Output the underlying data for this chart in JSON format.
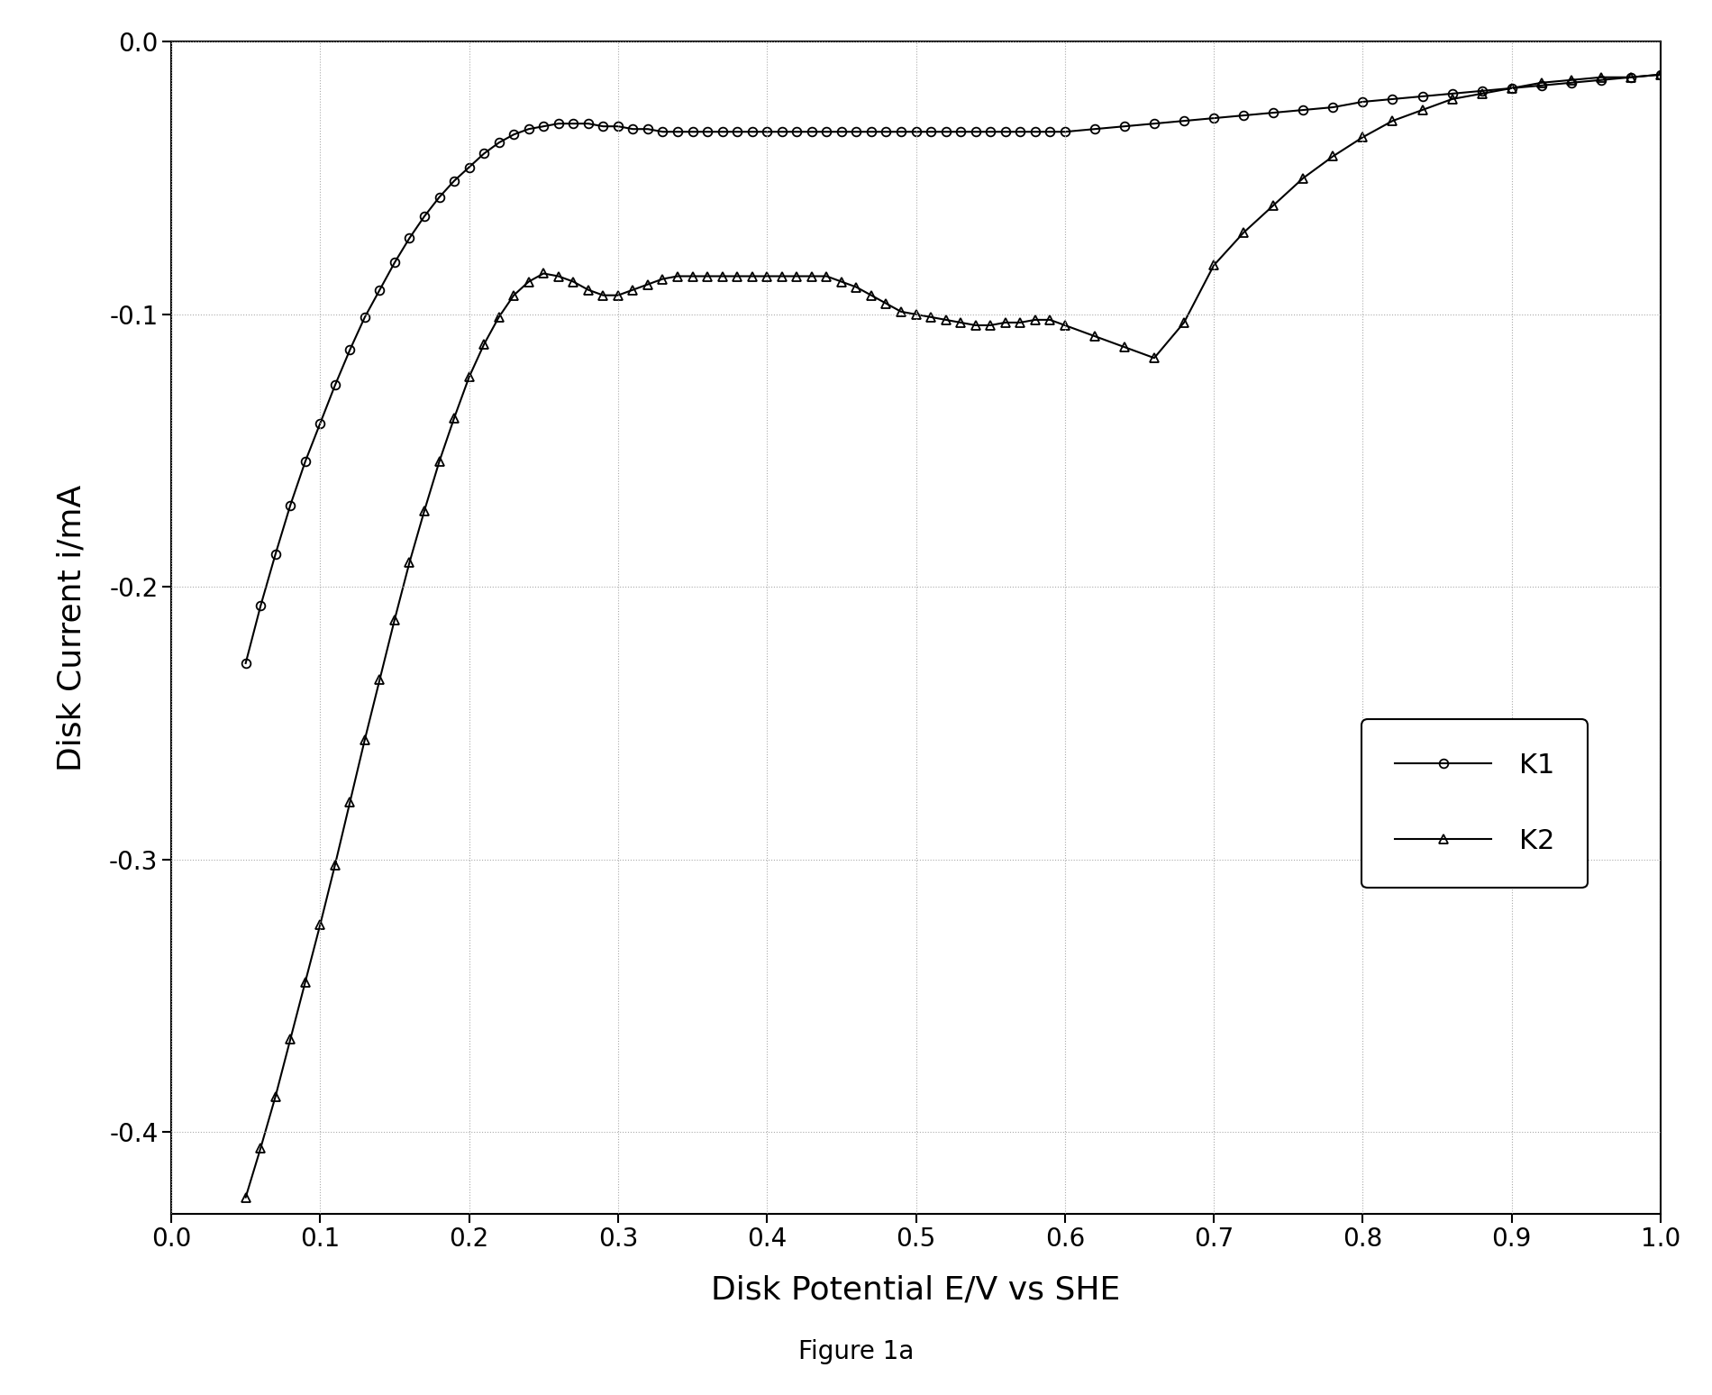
{
  "title": "Figure 1a",
  "xlabel": "Disk Potential E/V vs SHE",
  "ylabel": "Disk Current i/mA",
  "xlim": [
    0.0,
    1.0
  ],
  "ylim": [
    -0.43,
    0.0
  ],
  "xticks": [
    0.0,
    0.1,
    0.2,
    0.3,
    0.4,
    0.5,
    0.6,
    0.7,
    0.8,
    0.9,
    1.0
  ],
  "yticks": [
    0.0,
    -0.1,
    -0.2,
    -0.3,
    -0.4
  ],
  "K1_x": [
    0.05,
    0.06,
    0.07,
    0.08,
    0.09,
    0.1,
    0.11,
    0.12,
    0.13,
    0.14,
    0.15,
    0.16,
    0.17,
    0.18,
    0.19,
    0.2,
    0.21,
    0.22,
    0.23,
    0.24,
    0.25,
    0.26,
    0.27,
    0.28,
    0.29,
    0.3,
    0.31,
    0.32,
    0.33,
    0.34,
    0.35,
    0.36,
    0.37,
    0.38,
    0.39,
    0.4,
    0.41,
    0.42,
    0.43,
    0.44,
    0.45,
    0.46,
    0.47,
    0.48,
    0.49,
    0.5,
    0.51,
    0.52,
    0.53,
    0.54,
    0.55,
    0.56,
    0.57,
    0.58,
    0.59,
    0.6,
    0.62,
    0.64,
    0.66,
    0.68,
    0.7,
    0.72,
    0.74,
    0.76,
    0.78,
    0.8,
    0.82,
    0.84,
    0.86,
    0.88,
    0.9,
    0.92,
    0.94,
    0.96,
    0.98,
    1.0
  ],
  "K1_y": [
    -0.228,
    -0.207,
    -0.188,
    -0.17,
    -0.154,
    -0.14,
    -0.126,
    -0.113,
    -0.101,
    -0.091,
    -0.081,
    -0.072,
    -0.064,
    -0.057,
    -0.051,
    -0.046,
    -0.041,
    -0.037,
    -0.034,
    -0.032,
    -0.031,
    -0.03,
    -0.03,
    -0.03,
    -0.031,
    -0.031,
    -0.032,
    -0.032,
    -0.033,
    -0.033,
    -0.033,
    -0.033,
    -0.033,
    -0.033,
    -0.033,
    -0.033,
    -0.033,
    -0.033,
    -0.033,
    -0.033,
    -0.033,
    -0.033,
    -0.033,
    -0.033,
    -0.033,
    -0.033,
    -0.033,
    -0.033,
    -0.033,
    -0.033,
    -0.033,
    -0.033,
    -0.033,
    -0.033,
    -0.033,
    -0.033,
    -0.032,
    -0.031,
    -0.03,
    -0.029,
    -0.028,
    -0.027,
    -0.026,
    -0.025,
    -0.024,
    -0.022,
    -0.021,
    -0.02,
    -0.019,
    -0.018,
    -0.017,
    -0.016,
    -0.015,
    -0.014,
    -0.013,
    -0.012
  ],
  "K2_x": [
    0.05,
    0.06,
    0.07,
    0.08,
    0.09,
    0.1,
    0.11,
    0.12,
    0.13,
    0.14,
    0.15,
    0.16,
    0.17,
    0.18,
    0.19,
    0.2,
    0.21,
    0.22,
    0.23,
    0.24,
    0.25,
    0.26,
    0.27,
    0.28,
    0.29,
    0.3,
    0.31,
    0.32,
    0.33,
    0.34,
    0.35,
    0.36,
    0.37,
    0.38,
    0.39,
    0.4,
    0.41,
    0.42,
    0.43,
    0.44,
    0.45,
    0.46,
    0.47,
    0.48,
    0.49,
    0.5,
    0.51,
    0.52,
    0.53,
    0.54,
    0.55,
    0.56,
    0.57,
    0.58,
    0.59,
    0.6,
    0.62,
    0.64,
    0.66,
    0.68,
    0.7,
    0.72,
    0.74,
    0.76,
    0.78,
    0.8,
    0.82,
    0.84,
    0.86,
    0.88,
    0.9,
    0.92,
    0.94,
    0.96,
    0.98,
    1.0
  ],
  "K2_y": [
    -0.424,
    -0.406,
    -0.387,
    -0.366,
    -0.345,
    -0.324,
    -0.302,
    -0.279,
    -0.256,
    -0.234,
    -0.212,
    -0.191,
    -0.172,
    -0.154,
    -0.138,
    -0.123,
    -0.111,
    -0.101,
    -0.093,
    -0.088,
    -0.085,
    -0.086,
    -0.088,
    -0.091,
    -0.093,
    -0.093,
    -0.091,
    -0.089,
    -0.087,
    -0.086,
    -0.086,
    -0.086,
    -0.086,
    -0.086,
    -0.086,
    -0.086,
    -0.086,
    -0.086,
    -0.086,
    -0.086,
    -0.088,
    -0.09,
    -0.093,
    -0.096,
    -0.099,
    -0.1,
    -0.101,
    -0.102,
    -0.103,
    -0.104,
    -0.104,
    -0.103,
    -0.103,
    -0.102,
    -0.102,
    -0.104,
    -0.108,
    -0.112,
    -0.116,
    -0.103,
    -0.082,
    -0.07,
    -0.06,
    -0.05,
    -0.042,
    -0.035,
    -0.029,
    -0.025,
    -0.021,
    -0.019,
    -0.017,
    -0.015,
    -0.014,
    -0.013,
    -0.013,
    -0.012
  ],
  "line_color": "#000000",
  "bg_color": "#ffffff",
  "legend_labels": [
    "K1",
    "K2"
  ],
  "marker_K1": "o",
  "marker_K2": "^",
  "markersize": 7,
  "linewidth": 1.5,
  "title_fontsize": 20,
  "label_fontsize": 26,
  "tick_fontsize": 20,
  "legend_fontsize": 22
}
